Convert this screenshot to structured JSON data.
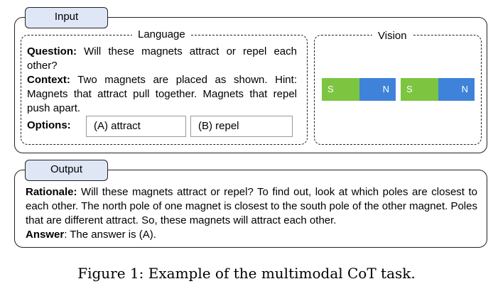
{
  "input": {
    "tab_label": "Input",
    "language": {
      "legend": "Language",
      "question_label": "Question:",
      "question_text": "Will these magnets attract or repel each other?",
      "context_label": "Context:",
      "context_text": "Two magnets are placed as shown. Hint: Magnets that attract pull together. Magnets that repel push apart.",
      "options_label": "Options:",
      "options": [
        "(A) attract",
        "(B) repel"
      ]
    },
    "vision": {
      "legend": "Vision",
      "magnets": [
        {
          "left_pole": "S",
          "right_pole": "N"
        },
        {
          "left_pole": "S",
          "right_pole": "N"
        }
      ],
      "colors": {
        "south": "#7dc540",
        "north": "#3f82d9"
      }
    }
  },
  "output": {
    "tab_label": "Output",
    "rationale_label": "Rationale:",
    "rationale_text": "Will these magnets attract or repel? To find out, look at which poles are closest to each other. The north pole of one magnet is closest to the south pole of the other magnet. Poles that are different attract. So, these magnets will attract each other.",
    "answer_label": "Answer",
    "answer_text": ": The answer is (A)."
  },
  "caption": "Figure 1: Example of the multimodal CoT task.",
  "colors": {
    "tab_fill": "#dfe6f5",
    "border": "#222222"
  }
}
